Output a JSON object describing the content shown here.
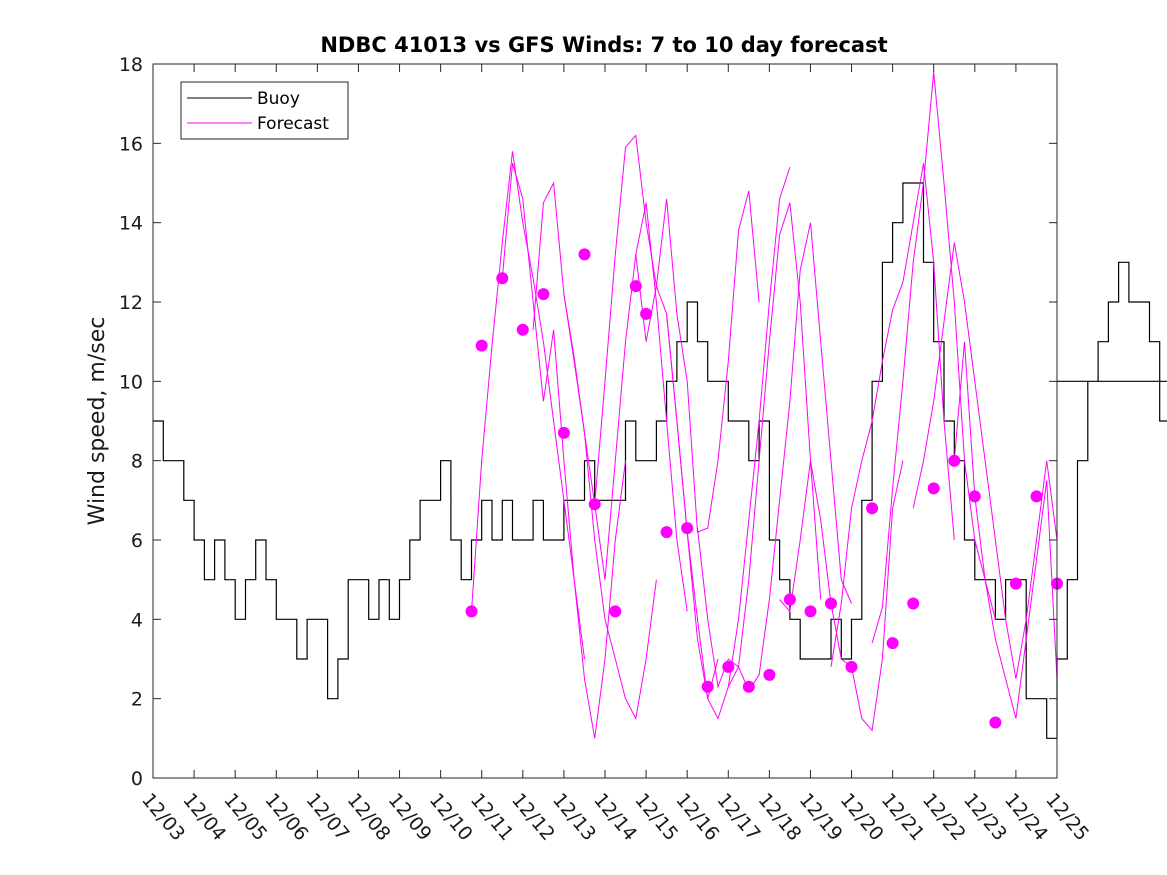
{
  "chart_data": {
    "type": "line",
    "title": "NDBC 41013 vs GFS Winds: 7 to 10 day forecast",
    "xlabel": "",
    "ylabel": "Wind speed, m/sec",
    "xlim": [
      0,
      22
    ],
    "ylim": [
      0,
      18
    ],
    "yticks": [
      0,
      2,
      4,
      6,
      8,
      10,
      12,
      14,
      16,
      18
    ],
    "ytick_labels": [
      "0",
      "2",
      "4",
      "6",
      "8",
      "10",
      "12",
      "14",
      "16",
      "18"
    ],
    "xtick_labels": [
      "12/03",
      "12/04",
      "12/05",
      "12/06",
      "12/07",
      "12/08",
      "12/09",
      "12/10",
      "12/11",
      "12/12",
      "12/13",
      "12/14",
      "12/15",
      "12/16",
      "12/17",
      "12/18",
      "12/19",
      "12/20",
      "12/21",
      "12/22",
      "12/23",
      "12/24",
      "12/25"
    ],
    "legend": {
      "location": "top-left",
      "entries": [
        {
          "name": "Buoy",
          "color": "#000000"
        },
        {
          "name": "Forecast",
          "color": "#ff00ff"
        }
      ]
    },
    "colors": {
      "buoy": "#000000",
      "forecast": "#ff00ff",
      "markers": "#ff00ff"
    },
    "series": [
      {
        "name": "Buoy",
        "x_start": 0,
        "x_step": 0.25,
        "values": [
          9,
          8,
          8,
          7,
          6,
          5,
          6,
          5,
          4,
          5,
          6,
          5,
          4,
          4,
          3,
          4,
          4,
          2,
          3,
          5,
          5,
          4,
          5,
          4,
          5,
          6,
          7,
          7,
          8,
          6,
          5,
          6,
          7,
          6,
          7,
          6,
          6,
          7,
          6,
          6,
          7,
          7,
          8,
          7,
          7,
          7,
          9,
          8,
          8,
          9,
          10,
          11,
          12,
          11,
          10,
          10,
          9,
          9,
          8,
          9,
          6,
          5,
          4,
          3,
          3,
          3,
          4,
          3,
          4,
          7,
          10,
          13,
          14,
          15,
          15,
          13,
          11,
          9,
          8,
          6,
          5,
          5,
          4,
          5,
          5,
          2,
          2,
          1,
          3,
          5,
          8,
          10,
          11,
          12,
          13,
          12,
          12,
          11,
          9,
          8,
          8,
          6,
          5,
          3,
          2,
          1,
          2,
          4,
          6,
          5,
          5,
          4,
          5,
          6,
          7,
          8,
          9,
          10,
          11,
          11,
          12,
          11,
          10,
          10,
          9,
          8,
          6,
          5,
          4,
          4,
          3,
          2,
          3,
          4,
          5,
          6,
          6,
          5,
          6,
          7,
          7,
          8,
          9,
          10,
          11,
          10,
          9,
          7,
          6,
          5,
          5,
          6,
          7,
          8,
          10,
          11,
          12,
          11,
          10,
          10,
          11,
          10
        ]
      }
    ],
    "forecast_runs": [
      {
        "name": "Forecast run 1",
        "x": [
          7.75,
          8.0,
          8.25,
          8.5,
          8.75,
          9.0,
          9.25,
          9.5,
          9.75,
          10.0,
          10.25,
          10.5
        ],
        "values": [
          4.2,
          8.0,
          10.9,
          13.5,
          15.8,
          14.0,
          12.6,
          11.0,
          9.0,
          7.0,
          5.0,
          3.0
        ]
      },
      {
        "name": "Forecast run 2",
        "x": [
          8.5,
          8.75,
          9.0,
          9.25,
          9.5,
          9.75,
          10.0,
          10.25,
          10.5,
          10.75,
          11.0,
          11.25,
          11.5
        ],
        "values": [
          12.6,
          15.5,
          14.6,
          12.0,
          9.5,
          11.3,
          8.0,
          5.0,
          2.5,
          1.0,
          3.0,
          6.0,
          8.0
        ]
      },
      {
        "name": "Forecast run 3",
        "x": [
          9.25,
          9.5,
          9.75,
          10.0,
          10.25,
          10.5,
          10.75,
          11.0,
          11.25,
          11.5,
          11.75,
          12.0,
          12.25
        ],
        "values": [
          11.3,
          14.5,
          15.0,
          12.2,
          10.5,
          8.7,
          6.0,
          4.0,
          3.0,
          2.0,
          1.5,
          3.0,
          5.0
        ]
      },
      {
        "name": "Forecast run 4",
        "x": [
          10.0,
          10.25,
          10.5,
          10.75,
          11.0,
          11.25,
          11.5,
          11.75,
          12.0,
          12.25,
          12.5,
          12.75,
          13.0
        ],
        "values": [
          12.2,
          10.6,
          8.7,
          6.9,
          5.0,
          8.0,
          11.0,
          13.2,
          14.5,
          12.0,
          9.0,
          6.0,
          4.2
        ]
      },
      {
        "name": "Forecast run 5",
        "x": [
          10.75,
          11.0,
          11.25,
          11.5,
          11.75,
          12.0,
          12.25,
          12.5,
          12.75,
          13.0,
          13.25,
          13.5,
          13.75
        ],
        "values": [
          6.9,
          10.0,
          13.2,
          15.9,
          16.2,
          14.0,
          12.4,
          11.7,
          9.0,
          6.2,
          4.0,
          2.0,
          3.0
        ]
      },
      {
        "name": "Forecast run 6",
        "x": [
          11.75,
          12.0,
          12.25,
          12.5,
          12.75,
          13.0,
          13.25,
          13.5,
          13.75,
          14.0,
          14.25,
          14.5,
          14.75
        ],
        "values": [
          13.2,
          11.0,
          12.4,
          14.6,
          11.7,
          10.0,
          6.2,
          6.3,
          8.0,
          10.5,
          13.8,
          14.8,
          12.0
        ]
      },
      {
        "name": "Forecast run 7",
        "x": [
          12.5,
          12.75,
          13.0,
          13.25,
          13.5,
          13.75,
          14.0,
          14.25,
          14.5,
          14.75,
          15.0,
          15.25,
          15.5
        ],
        "values": [
          11.7,
          9.0,
          6.2,
          3.5,
          2.0,
          1.5,
          2.3,
          4.0,
          6.5,
          9.0,
          12.0,
          14.6,
          15.4
        ]
      },
      {
        "name": "Forecast run 8",
        "x": [
          13.25,
          13.5,
          13.75,
          14.0,
          14.25,
          14.5,
          14.75,
          15.0,
          15.25,
          15.5,
          15.75,
          16.0,
          16.25
        ],
        "values": [
          6.3,
          4.0,
          2.3,
          3.0,
          2.8,
          5.0,
          8.0,
          11.0,
          13.7,
          14.5,
          12.0,
          8.0,
          4.5
        ]
      },
      {
        "name": "Forecast run 9",
        "x": [
          14.0,
          14.25,
          14.5,
          14.75,
          15.0,
          15.25,
          15.5,
          15.75,
          16.0,
          16.25,
          16.5,
          16.75,
          17.0
        ],
        "values": [
          2.3,
          2.8,
          2.2,
          2.6,
          4.5,
          7.0,
          9.5,
          12.8,
          14.0,
          11.0,
          8.0,
          5.0,
          4.4
        ]
      },
      {
        "name": "Forecast run 10",
        "x": [
          15.25,
          15.5,
          15.75,
          16.0,
          16.25,
          16.5,
          16.75,
          17.0,
          17.25,
          17.5,
          17.75,
          18.0,
          18.25
        ],
        "values": [
          4.5,
          4.2,
          6.0,
          8.0,
          6.5,
          4.4,
          3.0,
          2.8,
          1.5,
          1.2,
          3.0,
          6.8,
          8.0
        ]
      },
      {
        "name": "Forecast run 11",
        "x": [
          16.5,
          16.75,
          17.0,
          17.25,
          17.5,
          17.75,
          18.0,
          18.25,
          18.5,
          18.75,
          19.0,
          19.25,
          19.5
        ],
        "values": [
          2.8,
          4.4,
          6.8,
          8.0,
          9.0,
          10.5,
          11.8,
          12.5,
          14.0,
          15.5,
          13.0,
          9.0,
          6.0
        ]
      },
      {
        "name": "Forecast run 12",
        "x": [
          17.5,
          17.75,
          18.0,
          18.25,
          18.5,
          18.75,
          19.0,
          19.25,
          19.5,
          19.75,
          20.0,
          20.25,
          20.5
        ],
        "values": [
          3.4,
          4.3,
          7.3,
          10.0,
          13.0,
          15.0,
          17.8,
          15.0,
          12.0,
          8.0,
          6.0,
          5.0,
          4.0
        ]
      },
      {
        "name": "Forecast run 13",
        "x": [
          18.5,
          18.75,
          19.0,
          19.25,
          19.5,
          19.75,
          20.0,
          20.25,
          20.5,
          20.75,
          21.0,
          21.25,
          21.5,
          21.75,
          22.0
        ],
        "values": [
          6.8,
          8.0,
          9.5,
          11.5,
          13.5,
          12.0,
          10.0,
          8.0,
          6.0,
          4.0,
          2.5,
          4.0,
          6.0,
          8.0,
          6.0
        ]
      },
      {
        "name": "Forecast run 14",
        "x": [
          19.5,
          19.75,
          20.0,
          20.25,
          20.5,
          20.75,
          21.0,
          21.25,
          21.5,
          21.75,
          22.0
        ],
        "values": [
          8.0,
          11.0,
          7.1,
          5.0,
          3.5,
          2.5,
          1.5,
          3.5,
          5.5,
          7.5,
          2.5
        ]
      }
    ],
    "forecast_markers": {
      "x": [
        7.75,
        8.0,
        8.5,
        9.0,
        9.5,
        10.0,
        10.5,
        10.75,
        11.25,
        11.75,
        12.0,
        12.5,
        13.0,
        13.5,
        14.0,
        14.5,
        15.0,
        15.5,
        16.0,
        16.5,
        17.0,
        17.5,
        18.0,
        18.5,
        19.0,
        19.5,
        20.0,
        20.5,
        21.0,
        21.5,
        22.0
      ],
      "values": [
        4.2,
        10.9,
        12.6,
        11.3,
        12.2,
        8.7,
        13.2,
        6.9,
        4.2,
        12.4,
        11.7,
        6.2,
        6.3,
        2.3,
        2.8,
        2.3,
        2.6,
        4.5,
        4.2,
        4.4,
        2.8,
        6.8,
        3.4,
        4.4,
        7.3,
        8.0,
        7.1,
        1.4,
        4.9,
        7.1,
        4.9
      ]
    }
  }
}
